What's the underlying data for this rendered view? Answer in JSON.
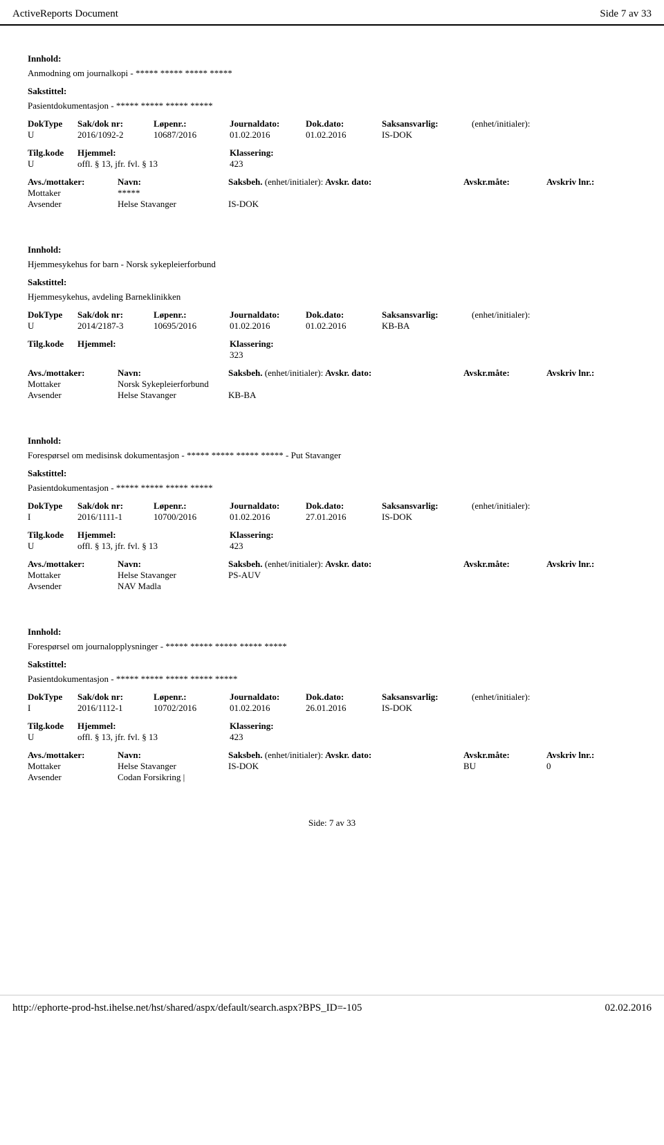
{
  "header": {
    "left": "ActiveReports Document",
    "right": "Side 7 av 33"
  },
  "labels": {
    "innhold": "Innhold:",
    "sakstittel": "Sakstittel:",
    "doktype": "DokType",
    "sakdok": "Sak/dok nr:",
    "lopenr": "Løpenr.:",
    "journaldato": "Journaldato:",
    "dokdato": "Dok.dato:",
    "saksansvarlig": "Saksansvarlig:",
    "enhet": "(enhet/initialer):",
    "tilgkode": "Tilg.kode",
    "hjemmel": "Hjemmel:",
    "klassering": "Klassering:",
    "avsmottaker": "Avs./mottaker:",
    "navn": "Navn:",
    "saksbeh": "Saksbeh.",
    "avskr_dato": "Avskr. dato:",
    "avskr_mate": "Avskr.måte:",
    "avskriv_lnr": "Avskriv lnr.:",
    "mottaker": "Mottaker",
    "avsender": "Avsender"
  },
  "records": [
    {
      "innhold": "Anmodning om journalkopi - ***** ***** ***** *****",
      "sakstittel": "Pasientdokumentasjon - ***** ***** ***** *****",
      "doktype": "U",
      "sakdok": "2016/1092-2",
      "lopenr": "10687/2016",
      "journaldato": "01.02.2016",
      "dokdato": "01.02.2016",
      "saksansvarlig": "IS-DOK",
      "enhet": "",
      "tilgkode": "U",
      "hjemmel": "offl. § 13, jfr. fvl. § 13",
      "klassering": "423",
      "parties": [
        {
          "role": "Mottaker",
          "navn": "*****",
          "saksbeh": "",
          "dato": "",
          "mate": "",
          "lnr": ""
        },
        {
          "role": "Avsender",
          "navn": "Helse Stavanger",
          "saksbeh": "IS-DOK",
          "dato": "",
          "mate": "",
          "lnr": ""
        }
      ]
    },
    {
      "innhold": "Hjemmesykehus for barn - Norsk sykepleierforbund",
      "sakstittel": "Hjemmesykehus, avdeling Barneklinikken",
      "doktype": "U",
      "sakdok": "2014/2187-3",
      "lopenr": "10695/2016",
      "journaldato": "01.02.2016",
      "dokdato": "01.02.2016",
      "saksansvarlig": "KB-BA",
      "enhet": "",
      "tilgkode": "",
      "hjemmel": "",
      "klassering": "323",
      "parties": [
        {
          "role": "Mottaker",
          "navn": "Norsk Sykepleierforbund",
          "saksbeh": "",
          "dato": "",
          "mate": "",
          "lnr": ""
        },
        {
          "role": "Avsender",
          "navn": "Helse Stavanger",
          "saksbeh": "KB-BA",
          "dato": "",
          "mate": "",
          "lnr": ""
        }
      ]
    },
    {
      "innhold": "Forespørsel om medisinsk dokumentasjon - ***** ***** ***** ***** - Put Stavanger",
      "sakstittel": "Pasientdokumentasjon - ***** ***** ***** *****",
      "doktype": "I",
      "sakdok": "2016/1111-1",
      "lopenr": "10700/2016",
      "journaldato": "01.02.2016",
      "dokdato": "27.01.2016",
      "saksansvarlig": "IS-DOK",
      "enhet": "",
      "tilgkode": "U",
      "hjemmel": "offl. § 13, jfr. fvl. § 13",
      "klassering": "423",
      "parties": [
        {
          "role": "Mottaker",
          "navn": "Helse Stavanger",
          "saksbeh": "PS-AUV",
          "dato": "",
          "mate": "",
          "lnr": ""
        },
        {
          "role": "Avsender",
          "navn": "NAV Madla",
          "saksbeh": "",
          "dato": "",
          "mate": "",
          "lnr": ""
        }
      ]
    },
    {
      "innhold": "Forespørsel om journalopplysninger - ***** ***** ***** ***** *****",
      "sakstittel": "Pasientdokumentasjon - ***** ***** ***** ***** *****",
      "doktype": "I",
      "sakdok": "2016/1112-1",
      "lopenr": "10702/2016",
      "journaldato": "01.02.2016",
      "dokdato": "26.01.2016",
      "saksansvarlig": "IS-DOK",
      "enhet": "",
      "tilgkode": "U",
      "hjemmel": "offl. § 13, jfr. fvl. § 13",
      "klassering": "423",
      "parties": [
        {
          "role": "Mottaker",
          "navn": "Helse Stavanger",
          "saksbeh": "IS-DOK",
          "dato": "",
          "mate": "BU",
          "lnr": "0"
        },
        {
          "role": "Avsender",
          "navn": "Codan Forsikring |",
          "saksbeh": "",
          "dato": "",
          "mate": "",
          "lnr": ""
        }
      ]
    }
  ],
  "page_indicator": "Side:  7  av  33",
  "footer": {
    "url": "http://ephorte-prod-hst.ihelse.net/hst/shared/aspx/default/search.aspx?BPS_ID=-105",
    "date": "02.02.2016"
  }
}
